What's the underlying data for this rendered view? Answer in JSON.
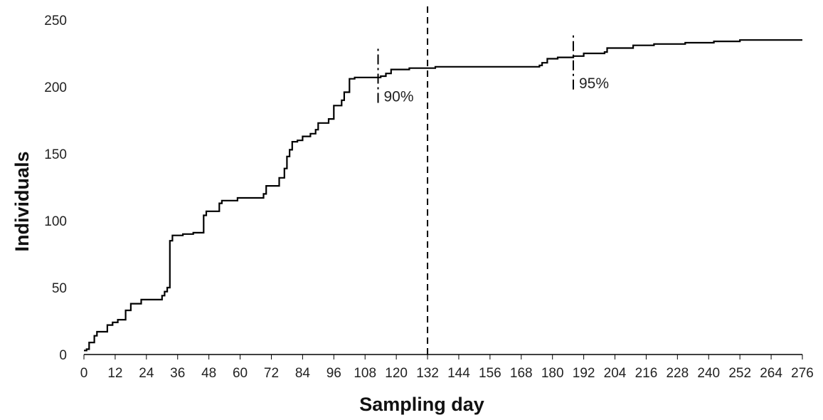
{
  "chart_data": {
    "type": "line",
    "title": "",
    "xlabel": "Sampling day",
    "ylabel": "Individuals",
    "xlim": [
      0,
      276
    ],
    "ylim": [
      0,
      250
    ],
    "x_ticks": [
      0,
      12,
      24,
      36,
      48,
      60,
      72,
      84,
      96,
      108,
      120,
      132,
      144,
      156,
      168,
      180,
      192,
      204,
      216,
      228,
      240,
      252,
      264,
      276
    ],
    "y_ticks": [
      0,
      50,
      100,
      150,
      200,
      250
    ],
    "grid": false,
    "legend": "none",
    "line_color": "#000000",
    "series": [
      {
        "step": true,
        "points": [
          [
            0,
            3
          ],
          [
            1,
            4
          ],
          [
            2,
            9
          ],
          [
            4,
            14
          ],
          [
            5,
            17
          ],
          [
            9,
            22
          ],
          [
            11,
            24
          ],
          [
            13,
            26
          ],
          [
            16,
            33
          ],
          [
            18,
            38
          ],
          [
            22,
            41
          ],
          [
            30,
            44
          ],
          [
            31,
            47
          ],
          [
            32,
            50
          ],
          [
            33,
            85
          ],
          [
            34,
            89
          ],
          [
            38,
            90
          ],
          [
            42,
            91
          ],
          [
            46,
            104
          ],
          [
            47,
            107
          ],
          [
            52,
            113
          ],
          [
            53,
            115
          ],
          [
            59,
            117
          ],
          [
            69,
            120
          ],
          [
            70,
            126
          ],
          [
            75,
            132
          ],
          [
            77,
            139
          ],
          [
            78,
            148
          ],
          [
            79,
            153
          ],
          [
            80,
            159
          ],
          [
            82,
            160
          ],
          [
            84,
            163
          ],
          [
            87,
            165
          ],
          [
            89,
            168
          ],
          [
            90,
            173
          ],
          [
            94,
            176
          ],
          [
            96,
            186
          ],
          [
            99,
            190
          ],
          [
            100,
            196
          ],
          [
            102,
            206
          ],
          [
            104,
            207
          ],
          [
            114,
            208
          ],
          [
            116,
            210
          ],
          [
            118,
            213
          ],
          [
            125,
            214
          ],
          [
            135,
            215
          ],
          [
            175,
            216
          ],
          [
            176,
            218
          ],
          [
            178,
            221
          ],
          [
            182,
            222
          ],
          [
            188,
            223
          ],
          [
            192,
            225
          ],
          [
            200,
            226
          ],
          [
            201,
            229
          ],
          [
            211,
            231
          ],
          [
            219,
            232
          ],
          [
            231,
            233
          ],
          [
            242,
            234
          ],
          [
            252,
            235
          ],
          [
            276,
            235
          ]
        ]
      }
    ],
    "annotations": [
      {
        "type": "vline",
        "style": "dashed",
        "x": 132,
        "y_range": [
          0,
          262
        ]
      },
      {
        "type": "dashdot",
        "x": 113,
        "y_range": [
          188,
          230
        ],
        "label": "90%"
      },
      {
        "type": "dashdot",
        "x": 188,
        "y_range": [
          198,
          240
        ],
        "label": "95%"
      }
    ]
  }
}
